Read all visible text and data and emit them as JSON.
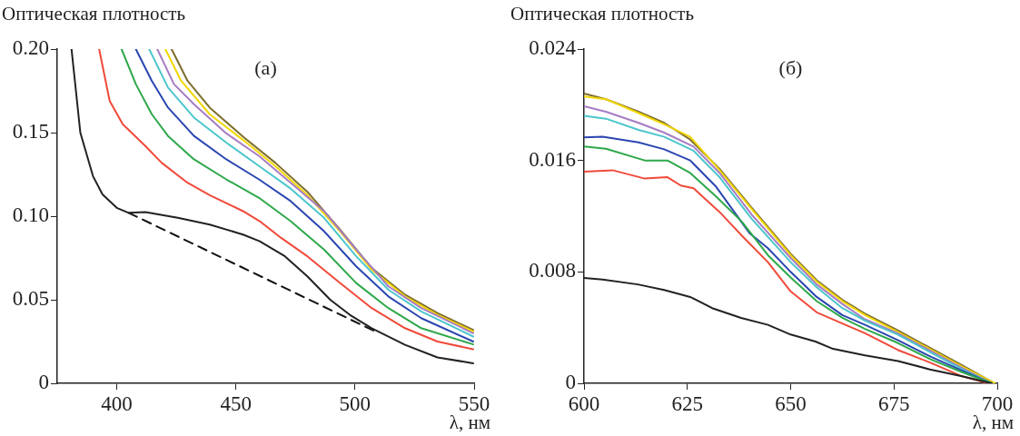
{
  "chart_data": [
    {
      "type": "line",
      "ylabel": "Оптическая плотность",
      "xlabel": "λ, нм",
      "annotations": [
        "(а)"
      ],
      "xlim": [
        375,
        550
      ],
      "xticks": [
        400,
        450,
        500,
        550
      ],
      "ylim": [
        0,
        0.2
      ],
      "yticks": [
        0,
        0.05,
        {
          "value": 0.1,
          "label": "0.10"
        },
        0.15,
        {
          "value": 0.2,
          "label": "0.20"
        }
      ],
      "legend": false,
      "grid": false,
      "marker": "none",
      "series": [
        {
          "color": "#222222",
          "x": [
            381,
            384.7,
            390,
            394,
            400,
            405,
            412,
            425.6,
            439,
            453,
            460,
            470.6,
            480,
            489.6,
            497.8,
            507,
            521,
            534.6,
            549.6
          ],
          "values": [
            0.2,
            0.15,
            0.124,
            0.113,
            0.105,
            0.102,
            0.1025,
            0.099,
            0.095,
            0.089,
            0.085,
            0.076,
            0.064,
            0.05,
            0.041,
            0.033,
            0.023,
            0.0155,
            0.012
          ]
        },
        {
          "color": "#111111",
          "line_style": "dashed",
          "x": [
            405,
            510
          ],
          "values": [
            0.102,
            0.03
          ]
        },
        {
          "color": "#f04a3a",
          "x": [
            392.6,
            397,
            402.5,
            412,
            418.8,
            429.7,
            439,
            453,
            460,
            469,
            480,
            493.7,
            507,
            521,
            534.6,
            549.6
          ],
          "values": [
            0.2,
            0.169,
            0.155,
            0.142,
            0.132,
            0.12,
            0.1126,
            0.103,
            0.097,
            0.087,
            0.076,
            0.06,
            0.045,
            0.033,
            0.025,
            0.0204
          ]
        },
        {
          "color": "#2ea84a",
          "x": [
            402,
            408,
            414.7,
            421.5,
            432.4,
            446,
            459.7,
            473,
            487,
            500.5,
            514,
            527.8,
            549.6
          ],
          "values": [
            0.2,
            0.179,
            0.161,
            0.148,
            0.134,
            0.122,
            0.111,
            0.097,
            0.08,
            0.06,
            0.045,
            0.033,
            0.0233
          ]
        },
        {
          "color": "#2a46b0",
          "x": [
            408,
            414.7,
            421.5,
            432.4,
            446,
            459.7,
            473,
            487,
            500.5,
            514,
            527.8,
            549.6
          ],
          "values": [
            0.2,
            0.181,
            0.165,
            0.148,
            0.134,
            0.122,
            0.109,
            0.091,
            0.07,
            0.052,
            0.039,
            0.025
          ]
        },
        {
          "color": "#4cc6cc",
          "x": [
            413.6,
            421.5,
            432.4,
            446,
            459.7,
            473,
            487,
            500.5,
            514,
            527.8,
            549.6
          ],
          "values": [
            0.2,
            0.177,
            0.159,
            0.144,
            0.13,
            0.1165,
            0.099,
            0.076,
            0.056,
            0.043,
            0.028
          ]
        },
        {
          "color": "#a77cc4",
          "x": [
            417,
            424,
            432.4,
            446,
            459.7,
            473,
            487,
            500.5,
            514,
            527.8,
            549.6
          ],
          "values": [
            0.2,
            0.179,
            0.167,
            0.1495,
            0.136,
            0.12,
            0.103,
            0.08,
            0.058,
            0.045,
            0.03
          ]
        },
        {
          "color": "#f2d600",
          "x": [
            420.4,
            427,
            439,
            453,
            466.5,
            480,
            493.7,
            507,
            521,
            534.6,
            549.6
          ],
          "values": [
            0.2,
            0.181,
            0.161,
            0.1456,
            0.13,
            0.1126,
            0.091,
            0.068,
            0.052,
            0.041,
            0.031
          ]
        },
        {
          "color": "#7d6e2c",
          "x": [
            423,
            429.7,
            439,
            453,
            466.5,
            480,
            493.7,
            507,
            521,
            534.6,
            549.6
          ],
          "values": [
            0.2,
            0.181,
            0.165,
            0.1476,
            0.132,
            0.1146,
            0.092,
            0.069,
            0.053,
            0.042,
            0.032
          ]
        }
      ]
    },
    {
      "type": "line",
      "ylabel": "Оптическая плотность",
      "xlabel": "λ, нм",
      "annotations": [
        "(б)"
      ],
      "xlim": [
        600,
        700
      ],
      "xticks": [
        600,
        625,
        650,
        675,
        700
      ],
      "ylim": [
        0,
        0.024
      ],
      "yticks": [
        0,
        0.008,
        0.016,
        0.024
      ],
      "legend": false,
      "grid": false,
      "marker": "none",
      "series": [
        {
          "color": "#222222",
          "x": [
            600,
            604.5,
            613,
            619.4,
            625.7,
            631,
            638,
            644.5,
            650,
            656,
            660,
            668,
            676,
            683.7,
            691.5,
            698.6
          ],
          "values": [
            0.00756,
            0.00745,
            0.0071,
            0.0067,
            0.0062,
            0.0054,
            0.0047,
            0.0042,
            0.0035,
            0.003,
            0.0025,
            0.002,
            0.0016,
            0.001,
            0.0005,
            0
          ]
        },
        {
          "color": "#f04a3a",
          "x": [
            600,
            606.9,
            614.7,
            620.2,
            623.4,
            626.5,
            632.8,
            638.2,
            644.5,
            650,
            656.3,
            662.5,
            668,
            675.9,
            684,
            691.5,
            697.8
          ],
          "values": [
            0.0152,
            0.0153,
            0.0147,
            0.0148,
            0.0142,
            0.014,
            0.0123,
            0.0106,
            0.0087,
            0.0066,
            0.0051,
            0.0043,
            0.0036,
            0.0024,
            0.00146,
            0.0005,
            0
          ]
        },
        {
          "color": "#2ea84a",
          "x": [
            600,
            605.3,
            614.7,
            620.2,
            625.7,
            632,
            638.2,
            644.5,
            650,
            656.3,
            662.5,
            668,
            675.9,
            684,
            691.5,
            698.6
          ],
          "values": [
            0.017,
            0.01684,
            0.016,
            0.016,
            0.0151,
            0.0134,
            0.0116,
            0.0092,
            0.0076,
            0.0059,
            0.0047,
            0.0039,
            0.0029,
            0.0017,
            0.0008,
            0
          ]
        },
        {
          "color": "#2a46b0",
          "x": [
            600,
            604.5,
            613.2,
            619.4,
            625.7,
            632,
            640,
            644.5,
            650,
            656.3,
            662.5,
            668,
            675.9,
            684,
            691.5,
            698.6
          ],
          "values": [
            0.01766,
            0.0177,
            0.0173,
            0.0168,
            0.016,
            0.0141,
            0.0108,
            0.0097,
            0.008,
            0.0062,
            0.0049,
            0.0042,
            0.0031,
            0.0019,
            0.0009,
            0
          ]
        },
        {
          "color": "#4cc6cc",
          "x": [
            600,
            605.3,
            613.2,
            619.4,
            626.5,
            632.8,
            640.6,
            650,
            656.3,
            662.5,
            668,
            675.9,
            684,
            691.5,
            698.6
          ],
          "values": [
            0.0192,
            0.019,
            0.0182,
            0.0177,
            0.0167,
            0.0148,
            0.0118,
            0.0087,
            0.0069,
            0.0054,
            0.0045,
            0.0035,
            0.0022,
            0.001,
            0
          ]
        },
        {
          "color": "#a77cc4",
          "x": [
            600,
            605.3,
            613.2,
            619.4,
            626.5,
            632.8,
            640.6,
            650,
            656.3,
            662.5,
            668,
            675.9,
            684,
            691.5,
            698.6
          ],
          "values": [
            0.0199,
            0.0195,
            0.0187,
            0.018,
            0.017,
            0.0151,
            0.0121,
            0.009,
            0.0071,
            0.0057,
            0.0046,
            0.0036,
            0.0023,
            0.0011,
            0
          ]
        },
        {
          "color": "#f2d600",
          "x": [
            600,
            605.3,
            613.2,
            619.4,
            625.7,
            632.8,
            640.6,
            650,
            656.3,
            662.5,
            668,
            675.9,
            684,
            691.5,
            699.4
          ],
          "values": [
            0.0206,
            0.0204,
            0.0194,
            0.0186,
            0.0177,
            0.0153,
            0.0125,
            0.0092,
            0.0073,
            0.0059,
            0.0049,
            0.0037,
            0.0024,
            0.0012,
            0
          ]
        },
        {
          "color": "#7d6e2c",
          "x": [
            600,
            605.3,
            613.2,
            619.4,
            625.7,
            632.8,
            640.6,
            650,
            656.3,
            662.5,
            668,
            675.9,
            684,
            691.5,
            699.4
          ],
          "values": [
            0.0208,
            0.0204,
            0.0195,
            0.0187,
            0.0175,
            0.0154,
            0.0126,
            0.0093,
            0.0074,
            0.006,
            0.005,
            0.0038,
            0.0025,
            0.0013,
            0
          ]
        }
      ]
    }
  ]
}
